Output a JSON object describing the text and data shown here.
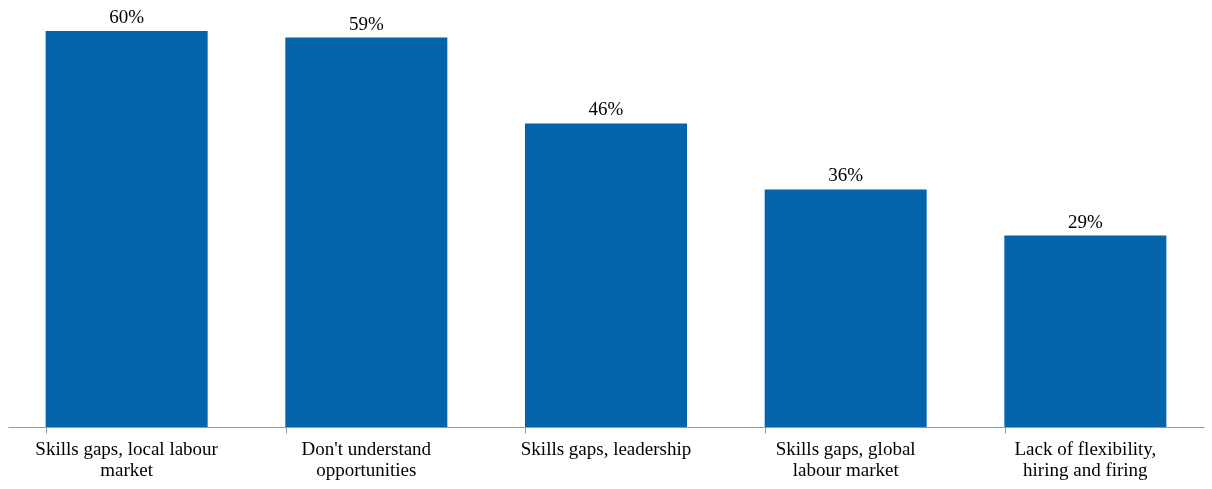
{
  "chart_data": {
    "type": "bar",
    "categories": [
      "Skills gaps, local labour\nmarket",
      "Don't understand\nopportunities",
      "Skills gaps, leadership",
      "Skills gaps, global\nlabour market",
      "Lack of flexibility,\nhiring and firing"
    ],
    "values": [
      60,
      59,
      46,
      36,
      29
    ],
    "value_labels": [
      "60%",
      "59%",
      "46%",
      "36%",
      "29%"
    ],
    "color": "#0563ab",
    "grid": false,
    "tick_labels": "x"
  }
}
